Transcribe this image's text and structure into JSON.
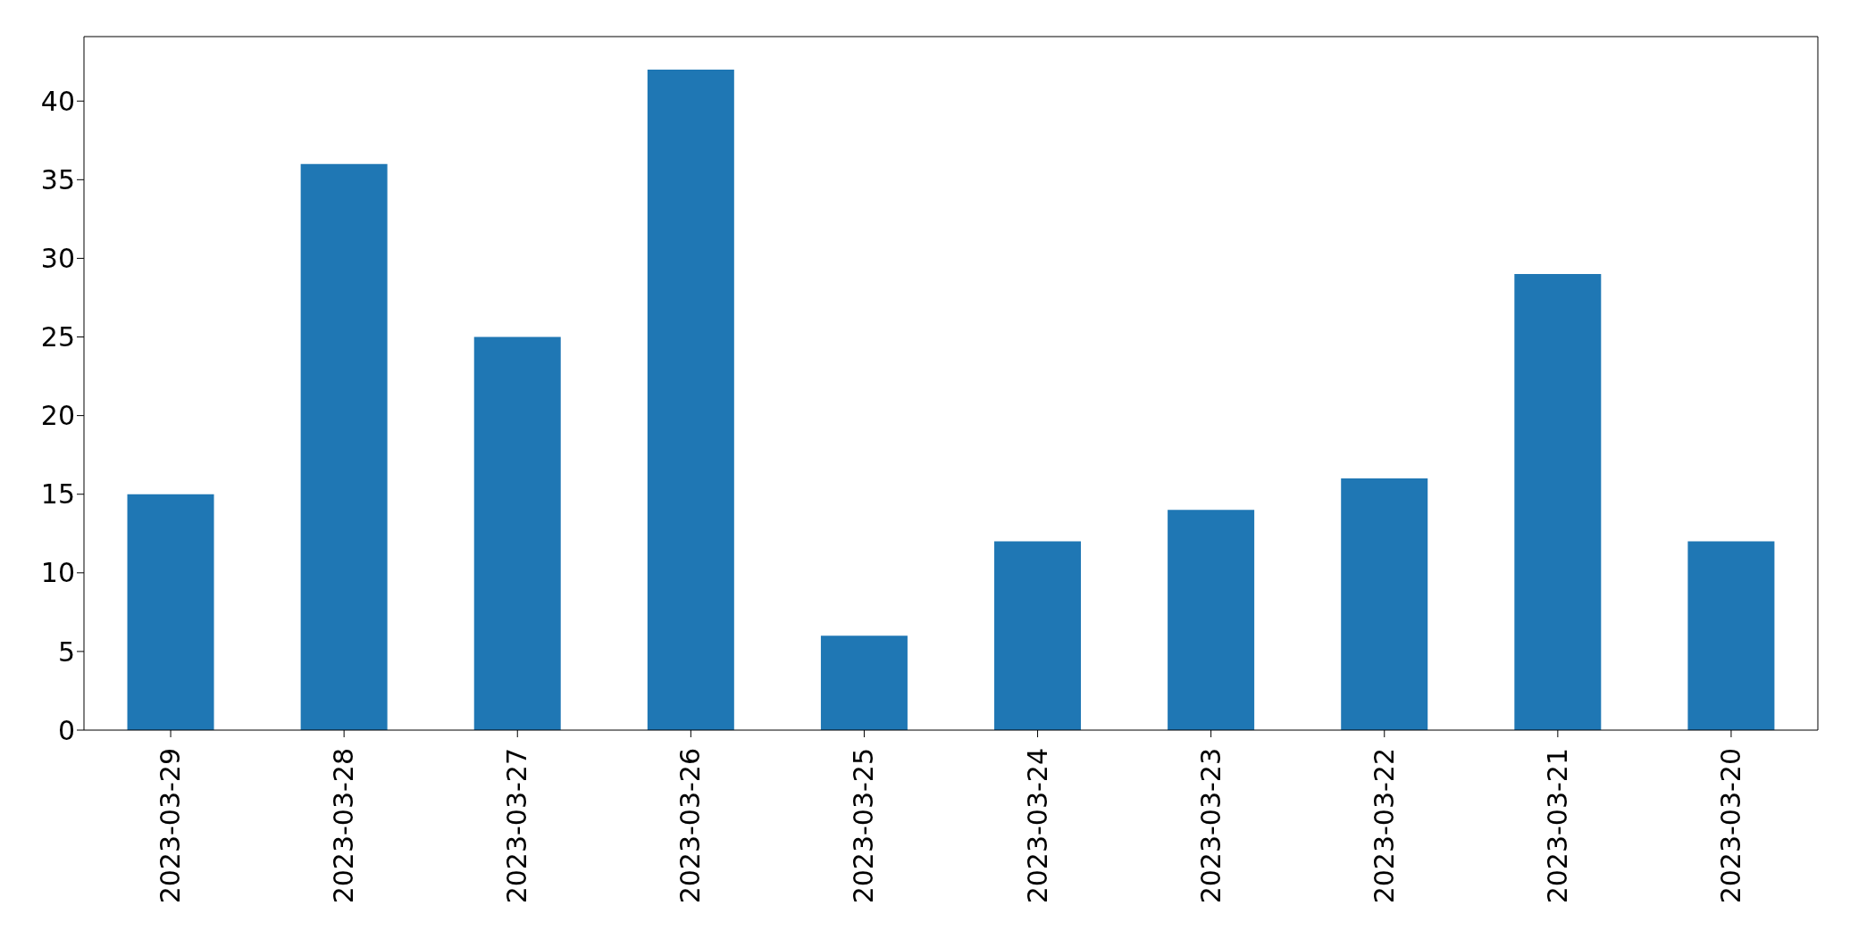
{
  "chart_data": {
    "type": "bar",
    "categories": [
      "2023-03-29",
      "2023-03-28",
      "2023-03-27",
      "2023-03-26",
      "2023-03-25",
      "2023-03-24",
      "2023-03-23",
      "2023-03-22",
      "2023-03-21",
      "2023-03-20"
    ],
    "values": [
      15,
      36,
      25,
      42,
      6,
      12,
      14,
      16,
      29,
      12
    ],
    "color": "#1f77b4",
    "ylim": [
      0,
      44.1
    ],
    "yticks": [
      0,
      5,
      10,
      15,
      20,
      25,
      30,
      35,
      40
    ],
    "grid": false,
    "legend": false
  }
}
